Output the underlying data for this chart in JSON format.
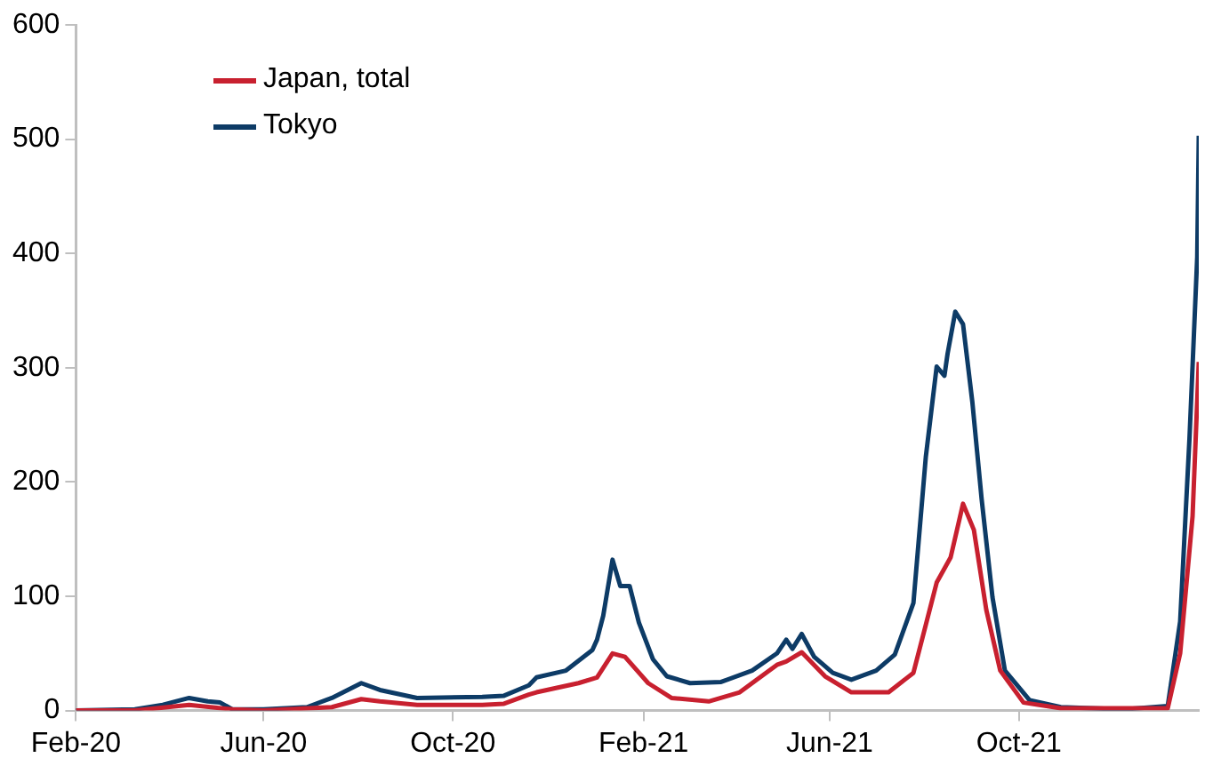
{
  "chart_data": {
    "type": "line",
    "legend": "top left",
    "grid": false,
    "marker": "none",
    "line_style": "solid",
    "xlim": [
      "2020-02-01",
      "2022-01-25"
    ],
    "xticks": [
      {
        "value": "2020-02-01",
        "label": "Feb-20"
      },
      {
        "value": "2020-06-01",
        "label": "Jun-20"
      },
      {
        "value": "2020-10-01",
        "label": "Oct-20"
      },
      {
        "value": "2021-02-01",
        "label": "Feb-21"
      },
      {
        "value": "2021-06-01",
        "label": "Jun-21"
      },
      {
        "value": "2021-10-01",
        "label": "Oct-21"
      }
    ],
    "ylim": [
      0,
      600
    ],
    "yticks": [
      0,
      100,
      200,
      300,
      400,
      500,
      600
    ],
    "series": [
      {
        "name": "Japan, total",
        "color": "#c8202f",
        "x": [
          "2020-02-01",
          "2020-03-10",
          "2020-04-14",
          "2020-05-12",
          "2020-06-01",
          "2020-07-15",
          "2020-08-03",
          "2020-08-15",
          "2020-09-08",
          "2020-10-20",
          "2020-11-03",
          "2020-11-19",
          "2020-11-24",
          "2020-12-21",
          "2021-01-02",
          "2021-01-12",
          "2021-01-20",
          "2021-02-04",
          "2021-02-19",
          "2021-03-15",
          "2021-04-04",
          "2021-04-28",
          "2021-05-04",
          "2021-05-14",
          "2021-05-29",
          "2021-06-15",
          "2021-07-09",
          "2021-07-25",
          "2021-08-02",
          "2021-08-09",
          "2021-08-18",
          "2021-08-26",
          "2021-09-02",
          "2021-09-10",
          "2021-09-19",
          "2021-10-04",
          "2021-10-28",
          "2022-01-05",
          "2022-01-13",
          "2022-01-21",
          "2022-01-25"
        ],
        "values": [
          0,
          0,
          5,
          1,
          0,
          3,
          10,
          8,
          5,
          5,
          6,
          14,
          16,
          24,
          29,
          50,
          47,
          24,
          11,
          8,
          16,
          40,
          43,
          51,
          30,
          16,
          16,
          33,
          75,
          112,
          134,
          181,
          158,
          88,
          35,
          7,
          2,
          2,
          50,
          170,
          305
        ]
      },
      {
        "name": "Tokyo",
        "color": "#0d3b66",
        "x": [
          "2020-02-01",
          "2020-03-10",
          "2020-03-28",
          "2020-04-14",
          "2020-04-26",
          "2020-05-04",
          "2020-05-12",
          "2020-06-01",
          "2020-06-29",
          "2020-07-15",
          "2020-08-03",
          "2020-08-15",
          "2020-09-08",
          "2020-10-20",
          "2020-11-03",
          "2020-11-19",
          "2020-11-24",
          "2020-12-13",
          "2020-12-30",
          "2021-01-02",
          "2021-01-06",
          "2021-01-12",
          "2021-01-17",
          "2021-01-23",
          "2021-01-29",
          "2021-02-07",
          "2021-02-16",
          "2021-03-03",
          "2021-03-23",
          "2021-04-12",
          "2021-04-28",
          "2021-05-04",
          "2021-05-08",
          "2021-05-14",
          "2021-05-22",
          "2021-06-03",
          "2021-06-15",
          "2021-07-01",
          "2021-07-13",
          "2021-07-25",
          "2021-08-02",
          "2021-08-09",
          "2021-08-14",
          "2021-08-16",
          "2021-08-21",
          "2021-08-26",
          "2021-09-01",
          "2021-09-07",
          "2021-09-14",
          "2021-09-22",
          "2021-10-08",
          "2021-10-28",
          "2021-12-07",
          "2022-01-05",
          "2022-01-13",
          "2022-01-19",
          "2022-01-24",
          "2022-01-25"
        ],
        "values": [
          0,
          1,
          5,
          11,
          8,
          7,
          1,
          1,
          3,
          11,
          24,
          18,
          11,
          12,
          13,
          22,
          29,
          35,
          53,
          62,
          83,
          132,
          109,
          109,
          77,
          45,
          30,
          24,
          25,
          35,
          50,
          62,
          54,
          67,
          47,
          33,
          27,
          35,
          49,
          94,
          222,
          301,
          293,
          312,
          349,
          338,
          270,
          185,
          99,
          35,
          9,
          3,
          1,
          4,
          78,
          238,
          397,
          503
        ]
      }
    ]
  }
}
